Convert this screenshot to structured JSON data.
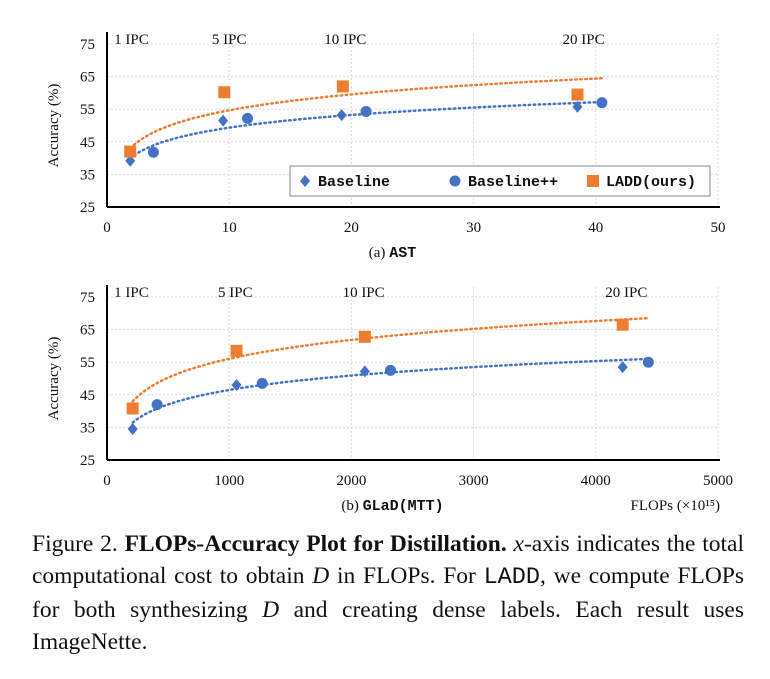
{
  "chart_data": [
    {
      "type": "scatter",
      "subtitle_prefix": "(a)",
      "subtitle_method": "AST",
      "ylabel": "Accuracy (%)",
      "xlim": [
        0,
        50
      ],
      "ylim": [
        25,
        75
      ],
      "xticks": [
        0,
        10,
        20,
        30,
        40,
        50
      ],
      "yticks": [
        25,
        35,
        45,
        55,
        65,
        75
      ],
      "grid": true,
      "legend_placement": "bottom-right",
      "ipc_labels": [
        {
          "text": "1 IPC",
          "x": 2
        },
        {
          "text": "5 IPC",
          "x": 10
        },
        {
          "text": "10 IPC",
          "x": 19.5
        },
        {
          "text": "20 IPC",
          "x": 39
        }
      ],
      "series": [
        {
          "name": "Baseline",
          "marker": "diamond",
          "color": "#4472C4",
          "x": [
            1.9,
            9.5,
            19.2,
            38.5
          ],
          "y": [
            39.2,
            51.5,
            53.2,
            55.7
          ]
        },
        {
          "name": "Baseline++",
          "marker": "circle",
          "color": "#4472C4",
          "x": [
            3.8,
            11.5,
            21.2,
            40.5
          ],
          "y": [
            41.8,
            52.2,
            54.3,
            57.0
          ]
        },
        {
          "name": "LADD(ours)",
          "marker": "square",
          "color": "#ED7D31",
          "x": [
            1.9,
            9.6,
            19.3,
            38.5
          ],
          "y": [
            42.0,
            60.2,
            62.0,
            59.5
          ]
        }
      ],
      "trendlines": [
        {
          "series": "Baseline (all blue)",
          "color": "#4472C4",
          "x": [
            1.9,
            40.5
          ],
          "y": [
            40.0,
            57.2
          ]
        },
        {
          "series": "LADD(ours)",
          "color": "#ED7D31",
          "x": [
            1.9,
            40.5
          ],
          "y": [
            43.0,
            64.5
          ]
        }
      ]
    },
    {
      "type": "scatter",
      "subtitle_prefix": "(b)",
      "subtitle_method": "GLaD(MTT)",
      "ylabel": "Accuracy (%)",
      "xlabel": "FLOPs (×10¹⁵)",
      "xlim": [
        0,
        5000
      ],
      "ylim": [
        25,
        75
      ],
      "xticks": [
        0,
        1000,
        2000,
        3000,
        4000,
        5000
      ],
      "yticks": [
        25,
        35,
        45,
        55,
        65,
        75
      ],
      "grid": true,
      "ipc_labels": [
        {
          "text": "1 IPC",
          "x": 200
        },
        {
          "text": "5 IPC",
          "x": 1050
        },
        {
          "text": "10 IPC",
          "x": 2100
        },
        {
          "text": "20 IPC",
          "x": 4250
        }
      ],
      "series": [
        {
          "name": "Baseline",
          "marker": "diamond",
          "color": "#4472C4",
          "x": [
            210,
            1060,
            2110,
            4220
          ],
          "y": [
            34.5,
            48.0,
            52.2,
            53.5
          ]
        },
        {
          "name": "Baseline++",
          "marker": "circle",
          "color": "#4472C4",
          "x": [
            410,
            1270,
            2320,
            4430
          ],
          "y": [
            42.0,
            48.5,
            52.5,
            55.0
          ]
        },
        {
          "name": "LADD(ours)",
          "marker": "square",
          "color": "#ED7D31",
          "x": [
            210,
            1060,
            2110,
            4220
          ],
          "y": [
            40.8,
            58.5,
            62.8,
            66.5
          ]
        }
      ],
      "trendlines": [
        {
          "series": "Baseline (all blue)",
          "color": "#4472C4",
          "x": [
            210,
            4430
          ],
          "y": [
            36.5,
            56.0
          ]
        },
        {
          "series": "LADD(ours)",
          "color": "#ED7D31",
          "x": [
            210,
            4430
          ],
          "y": [
            43.0,
            68.5
          ]
        }
      ]
    }
  ],
  "caption": {
    "label": "Figure 2.",
    "title": "FLOPs-Accuracy Plot for Distillation.",
    "p1": " x",
    "p2": "-axis indicates the total computational cost to obtain ",
    "D": "D",
    "p3": " in FLOPs.  For ",
    "ladd": "LADD",
    "p4": ", we compute FLOPs for both synthesizing ",
    "p5": " and creating dense labels. Each result uses ImageNette."
  }
}
